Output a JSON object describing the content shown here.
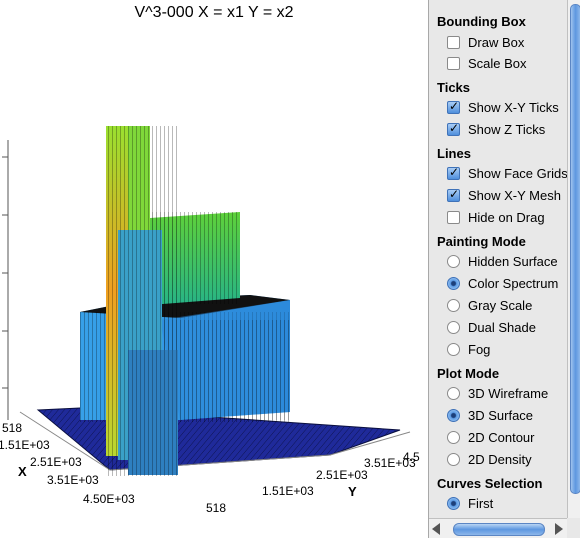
{
  "plot": {
    "title": "V^3-000 X = x1 Y = x2",
    "x_axis": {
      "name": "X",
      "ticks": [
        "518",
        "1.51E+03",
        "2.51E+03",
        "3.51E+03",
        "4.50E+03"
      ]
    },
    "y_axis": {
      "name": "Y",
      "ticks": [
        "518",
        "1.51E+03",
        "2.51E+03",
        "3.51E+03",
        "4.5"
      ]
    },
    "colors": {
      "background": "#ffffff",
      "floor": "#1a237e",
      "low": "#2196f3",
      "mid": "#4caf50",
      "high": "#ff9800"
    }
  },
  "panel": {
    "bounding_box": {
      "title": "Bounding Box",
      "options": [
        {
          "label": "Draw Box",
          "checked": false
        },
        {
          "label": "Scale Box",
          "checked": false
        }
      ]
    },
    "ticks": {
      "title": "Ticks",
      "options": [
        {
          "label": "Show X-Y Ticks",
          "checked": true
        },
        {
          "label": "Show Z Ticks",
          "checked": true
        }
      ]
    },
    "lines": {
      "title": "Lines",
      "options": [
        {
          "label": "Show Face Grids",
          "checked": true
        },
        {
          "label": "Show X-Y Mesh",
          "checked": true
        },
        {
          "label": "Hide on Drag",
          "checked": false
        }
      ]
    },
    "painting_mode": {
      "title": "Painting Mode",
      "options": [
        {
          "label": "Hidden Surface",
          "selected": false
        },
        {
          "label": "Color Spectrum",
          "selected": true
        },
        {
          "label": "Gray Scale",
          "selected": false
        },
        {
          "label": "Dual Shade",
          "selected": false
        },
        {
          "label": "Fog",
          "selected": false
        }
      ]
    },
    "plot_mode": {
      "title": "Plot Mode",
      "options": [
        {
          "label": "3D Wireframe",
          "selected": false
        },
        {
          "label": "3D Surface",
          "selected": true
        },
        {
          "label": "2D Contour",
          "selected": false
        },
        {
          "label": "2D Density",
          "selected": false
        }
      ]
    },
    "curves_selection": {
      "title": "Curves Selection",
      "options": [
        {
          "label": "First",
          "selected": true
        }
      ]
    }
  }
}
